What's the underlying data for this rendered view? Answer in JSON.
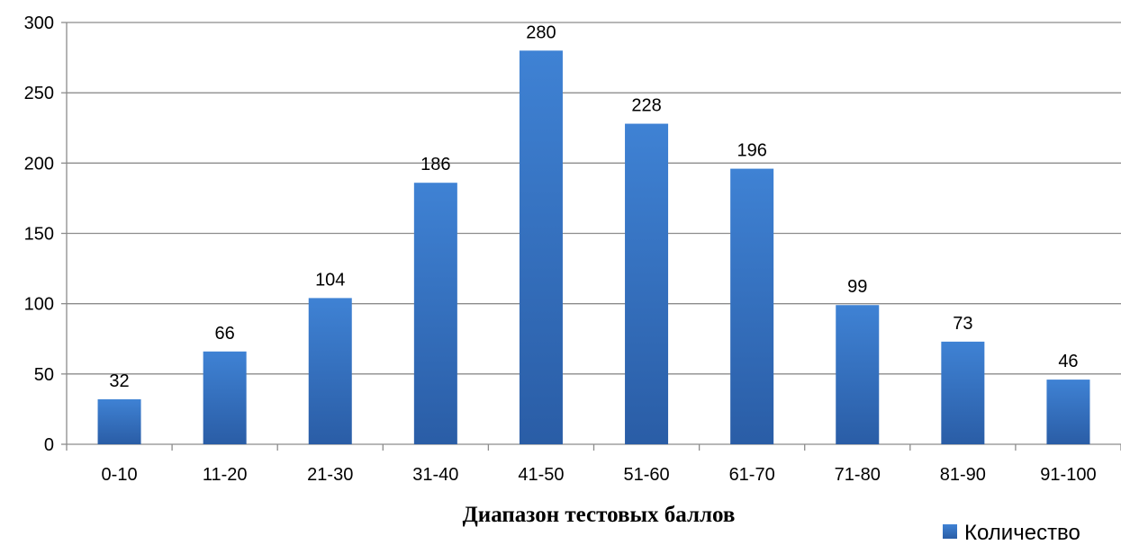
{
  "chart_data": {
    "type": "bar",
    "categories": [
      "0-10",
      "11-20",
      "21-30",
      "31-40",
      "41-50",
      "51-60",
      "61-70",
      "71-80",
      "81-90",
      "91-100"
    ],
    "series": [
      {
        "name": "Количество",
        "values": [
          32,
          66,
          104,
          186,
          280,
          228,
          196,
          99,
          73,
          46
        ],
        "color": "#3a78c8"
      }
    ],
    "xlabel": "Диапазон тестовых баллов",
    "ylabel": "",
    "ylim": [
      0,
      300
    ],
    "yticks": [
      0,
      50,
      100,
      150,
      200,
      250,
      300
    ],
    "grid": true,
    "data_labels": true,
    "legend_position": "bottom-right"
  }
}
